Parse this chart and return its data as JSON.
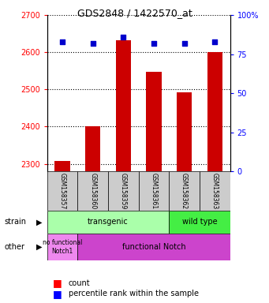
{
  "title": "GDS2848 / 1422570_at",
  "samples": [
    "GSM158357",
    "GSM158360",
    "GSM158359",
    "GSM158361",
    "GSM158362",
    "GSM158363"
  ],
  "counts": [
    2308,
    2400,
    2632,
    2548,
    2492,
    2600
  ],
  "percentiles": [
    83,
    82,
    86,
    82,
    82,
    83
  ],
  "ylim_left": [
    2280,
    2700
  ],
  "ylim_right": [
    0,
    100
  ],
  "yticks_left": [
    2300,
    2400,
    2500,
    2600,
    2700
  ],
  "yticks_right": [
    0,
    25,
    50,
    75,
    100
  ],
  "bar_color": "#cc0000",
  "dot_color": "#0000cc",
  "bar_width": 0.5,
  "strain_transgenic_color": "#aaffaa",
  "strain_wildtype_color": "#44ee44",
  "other_nofunc_color": "#ee88ee",
  "other_func_color": "#cc44cc",
  "sample_box_color": "#cccccc"
}
